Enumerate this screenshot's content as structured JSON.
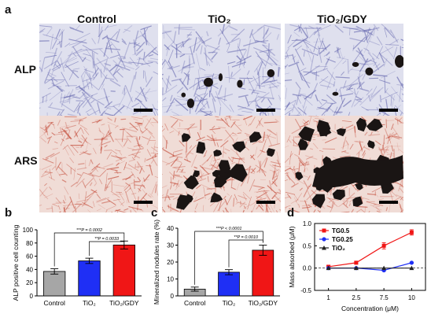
{
  "panels": {
    "a": "a",
    "b": "b",
    "c": "c",
    "d": "d"
  },
  "micrographs": {
    "columns": [
      "Control",
      "TiO₂",
      "TiO₂/GDY"
    ],
    "rows": [
      "ALP",
      "ARS"
    ],
    "colors": {
      "alp_bg": "#dfe0ee",
      "alp_stain": "#6d6fb3",
      "ars_bg": "#f0dcd6",
      "ars_stain": "#c0402d",
      "nodule": "#1a1514"
    }
  },
  "chart_data": [
    {
      "type": "bar",
      "panel": "b",
      "categories": [
        "Control",
        "TiO₂",
        "TiO₂/GDY"
      ],
      "values": [
        37,
        53,
        77
      ],
      "errors": [
        4,
        4,
        6
      ],
      "colors": [
        "#a6a6a6",
        "#1f2ff5",
        "#f01616"
      ],
      "ylabel": "ALP positive cell counting",
      "ylim": [
        0,
        100
      ],
      "yticks": [
        0,
        20,
        40,
        60,
        80,
        100
      ],
      "annotations": [
        {
          "text": "***P = 0.0002",
          "from": 0,
          "to": 2
        },
        {
          "text": "**P = 0.0033",
          "from": 1,
          "to": 2
        }
      ]
    },
    {
      "type": "bar",
      "panel": "c",
      "categories": [
        "Control",
        "TiO₂",
        "TiO₂/GDY"
      ],
      "values": [
        4,
        14,
        27
      ],
      "errors": [
        1.2,
        1.5,
        3
      ],
      "colors": [
        "#a6a6a6",
        "#1f2ff5",
        "#f01616"
      ],
      "ylabel": "Mineralized nodules rate (%)",
      "ylim": [
        0,
        40
      ],
      "yticks": [
        0,
        10,
        20,
        30,
        40
      ],
      "annotations": [
        {
          "text": "***P < 0.0001",
          "from": 0,
          "to": 2
        },
        {
          "text": "**P = 0.0010",
          "from": 1,
          "to": 2
        }
      ]
    },
    {
      "type": "line",
      "panel": "d",
      "x": [
        "1",
        "2.5",
        "7.5",
        "10"
      ],
      "series": [
        {
          "name": "TG0.5",
          "values": [
            0.03,
            0.12,
            0.5,
            0.8
          ],
          "errors": [
            0.02,
            0.02,
            0.07,
            0.06
          ],
          "color": "#f01616",
          "marker": "square"
        },
        {
          "name": "TG0.25",
          "values": [
            0.0,
            0.0,
            -0.05,
            0.12
          ],
          "errors": [
            0.01,
            0.01,
            0.02,
            0.01
          ],
          "color": "#1f2ff5",
          "marker": "circle"
        },
        {
          "name": "TiO₂",
          "values": [
            0.0,
            0.0,
            0.0,
            0.0
          ],
          "errors": [
            0,
            0,
            0,
            0
          ],
          "color": "#222222",
          "marker": "triangle"
        }
      ],
      "xlabel": "Concentration (μM)",
      "ylabel": "Mass absorbed (μM)",
      "ylim": [
        -0.5,
        1.0
      ],
      "yticks": [
        -0.5,
        0.0,
        0.5,
        1.0
      ],
      "legend": "top-left",
      "hline": 0
    }
  ]
}
